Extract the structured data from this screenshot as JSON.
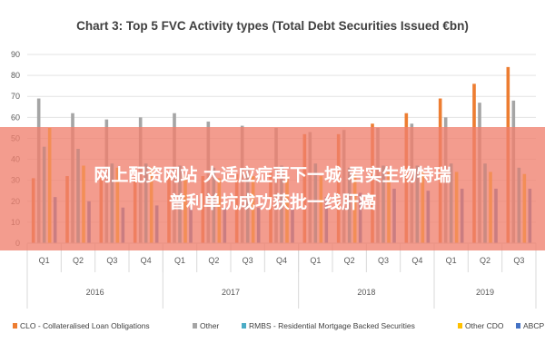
{
  "chart_data": {
    "type": "bar",
    "title": "Chart 3: Top 5 FVC Activity types (Total Debt Securities Issued €bn)",
    "xlabel": "",
    "ylabel": "",
    "ylim": [
      0,
      90
    ],
    "yticks": [
      "0",
      "10",
      "20",
      "30",
      "40",
      "50",
      "60",
      "70",
      "80",
      "90"
    ],
    "grid": true,
    "legend_position": "bottom",
    "categories": [
      "Q1",
      "Q2",
      "Q3",
      "Q4",
      "Q1",
      "Q2",
      "Q3",
      "Q4",
      "Q1",
      "Q2",
      "Q3",
      "Q4",
      "Q1",
      "Q2",
      "Q3"
    ],
    "groups": [
      {
        "label": "2016",
        "count": 4
      },
      {
        "label": "2017",
        "count": 4
      },
      {
        "label": "2018",
        "count": 4
      },
      {
        "label": "2019",
        "count": 3
      }
    ],
    "series": [
      {
        "name": "CLO - Collateralised Loan Obligations",
        "color": "#ed7d31",
        "values": [
          31,
          32,
          31,
          31,
          33,
          32,
          33,
          34,
          52,
          52,
          57,
          62,
          69,
          76,
          84
        ]
      },
      {
        "name": "Other",
        "color": "#a5a5a5",
        "values": [
          69,
          62,
          59,
          60,
          62,
          58,
          56,
          55,
          53,
          54,
          55,
          57,
          60,
          67,
          68
        ]
      },
      {
        "name": "RMBS - Residential Mortgage Backed Securities",
        "color": "#4bacc6",
        "values": [
          46,
          45,
          38,
          38,
          37,
          36,
          36,
          37,
          38,
          36,
          37,
          37,
          38,
          38,
          36
        ]
      },
      {
        "name": "Other CDO",
        "color": "#ffc000",
        "values": [
          55,
          37,
          36,
          36,
          32,
          31,
          32,
          32,
          32,
          33,
          34,
          34,
          34,
          34,
          33
        ]
      },
      {
        "name": "ABCP",
        "color": "#4472c4",
        "values": [
          22,
          20,
          17,
          18,
          17,
          17,
          17,
          17,
          22,
          24,
          26,
          25,
          26,
          26,
          26
        ]
      }
    ]
  },
  "overlay": {
    "line1": "网上配资网站 大适应症再下一城  君实生物特瑞",
    "line2": "普利单抗成功获批一线肝癌"
  }
}
